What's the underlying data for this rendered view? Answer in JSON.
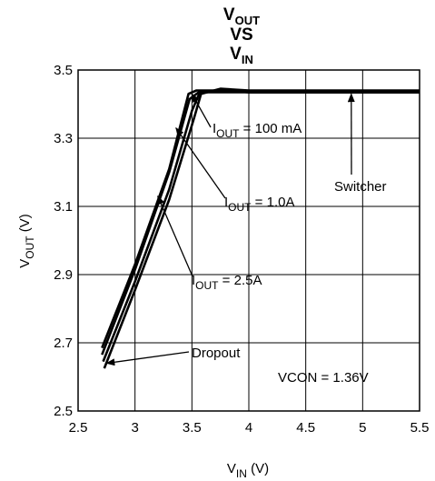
{
  "chart_data": {
    "type": "line",
    "title": {
      "line1_main": "V",
      "line1_sub": "OUT",
      "line2": "VS",
      "line3_main": "V",
      "line3_sub": "IN"
    },
    "xlabel": {
      "main": "V",
      "sub": "IN",
      "unit": " (V)"
    },
    "ylabel": {
      "main": "V",
      "sub": "OUT",
      "unit": " (V)"
    },
    "xlim": [
      2.5,
      5.5
    ],
    "ylim": [
      2.5,
      3.5
    ],
    "x_ticks": [
      2.5,
      3,
      3.5,
      4,
      4.5,
      5,
      5.5
    ],
    "x_tick_labels": [
      "2.5",
      "3",
      "3.5",
      "4",
      "4.5",
      "5",
      "5.5"
    ],
    "y_ticks": [
      2.5,
      2.7,
      2.9,
      3.1,
      3.3,
      3.5
    ],
    "y_tick_labels": [
      "2.5",
      "2.7",
      "2.9",
      "3.1",
      "3.3",
      "3.5"
    ],
    "grid": true,
    "line_color": "#000000",
    "series": [
      {
        "name": "IOUT = 100 mA",
        "x": [
          2.71,
          3.0,
          3.3,
          3.47,
          3.54,
          3.75,
          4.0,
          4.5,
          5.0,
          5.5
        ],
        "y": [
          2.685,
          2.93,
          3.21,
          3.43,
          3.44,
          3.44,
          3.435,
          3.435,
          3.435,
          3.435
        ]
      },
      {
        "name": "IOUT = 1.0A",
        "x": [
          2.71,
          3.0,
          3.3,
          3.48,
          3.56,
          3.75,
          4.0,
          4.5,
          5.0,
          5.5
        ],
        "y": [
          2.665,
          2.915,
          3.2,
          3.415,
          3.435,
          3.435,
          3.435,
          3.435,
          3.435,
          3.435
        ]
      },
      {
        "name": "IOUT = 2.5A",
        "x": [
          2.72,
          3.0,
          3.3,
          3.5,
          3.57,
          3.75,
          4.0,
          4.5,
          5.0,
          5.5
        ],
        "y": [
          2.645,
          2.88,
          3.15,
          3.38,
          3.435,
          3.44,
          3.435,
          3.435,
          3.435,
          3.435
        ]
      },
      {
        "name": "Dropout",
        "x": [
          2.73,
          3.0,
          3.3,
          3.52,
          3.58,
          3.75,
          4.0,
          4.5,
          5.0,
          5.5
        ],
        "y": [
          2.625,
          2.855,
          3.12,
          3.36,
          3.43,
          3.445,
          3.44,
          3.44,
          3.44,
          3.44
        ]
      }
    ],
    "annotations": [
      {
        "label_main": "I",
        "label_sub": "OUT",
        "label_rest": " = 100 mA",
        "points_to": [
          3.5,
          3.43
        ]
      },
      {
        "label_main": "I",
        "label_sub": "OUT",
        "label_rest": " = 1.0A",
        "points_to": [
          3.36,
          3.33
        ]
      },
      {
        "label_main": "I",
        "label_sub": "OUT",
        "label_rest": " = 2.5A",
        "points_to": [
          3.2,
          3.13
        ]
      },
      {
        "label_main": "Switcher",
        "points_to": [
          4.9,
          3.43
        ]
      },
      {
        "label_main": "Dropout",
        "points_to": [
          2.75,
          2.64
        ]
      },
      {
        "label_main": "VCON = 1.36V"
      }
    ]
  }
}
